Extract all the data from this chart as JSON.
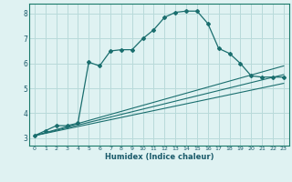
{
  "xlabel": "Humidex (Indice chaleur)",
  "bg_color": "#dff2f2",
  "grid_color": "#b8dada",
  "line_color": "#1a6e6e",
  "xlim": [
    -0.5,
    23.5
  ],
  "ylim": [
    2.7,
    8.4
  ],
  "xticks": [
    0,
    1,
    2,
    3,
    4,
    5,
    6,
    7,
    8,
    9,
    10,
    11,
    12,
    13,
    14,
    15,
    16,
    17,
    18,
    19,
    20,
    21,
    22,
    23
  ],
  "yticks": [
    3,
    4,
    5,
    6,
    7,
    8
  ],
  "main_line_x": [
    0,
    1,
    2,
    3,
    4,
    5,
    6,
    7,
    8,
    9,
    10,
    11,
    12,
    13,
    14,
    15,
    16,
    17,
    18,
    19,
    20,
    21,
    22,
    23
  ],
  "main_line_y": [
    3.1,
    3.3,
    3.5,
    3.5,
    3.6,
    6.05,
    5.9,
    6.5,
    6.55,
    6.55,
    7.0,
    7.35,
    7.85,
    8.05,
    8.1,
    8.1,
    7.6,
    6.6,
    6.4,
    6.0,
    5.5,
    5.45,
    5.45,
    5.45
  ],
  "line2_x": [
    0,
    23
  ],
  "line2_y": [
    3.1,
    5.9
  ],
  "line3_x": [
    0,
    23
  ],
  "line3_y": [
    3.1,
    5.55
  ],
  "line4_x": [
    0,
    23
  ],
  "line4_y": [
    3.1,
    5.2
  ]
}
